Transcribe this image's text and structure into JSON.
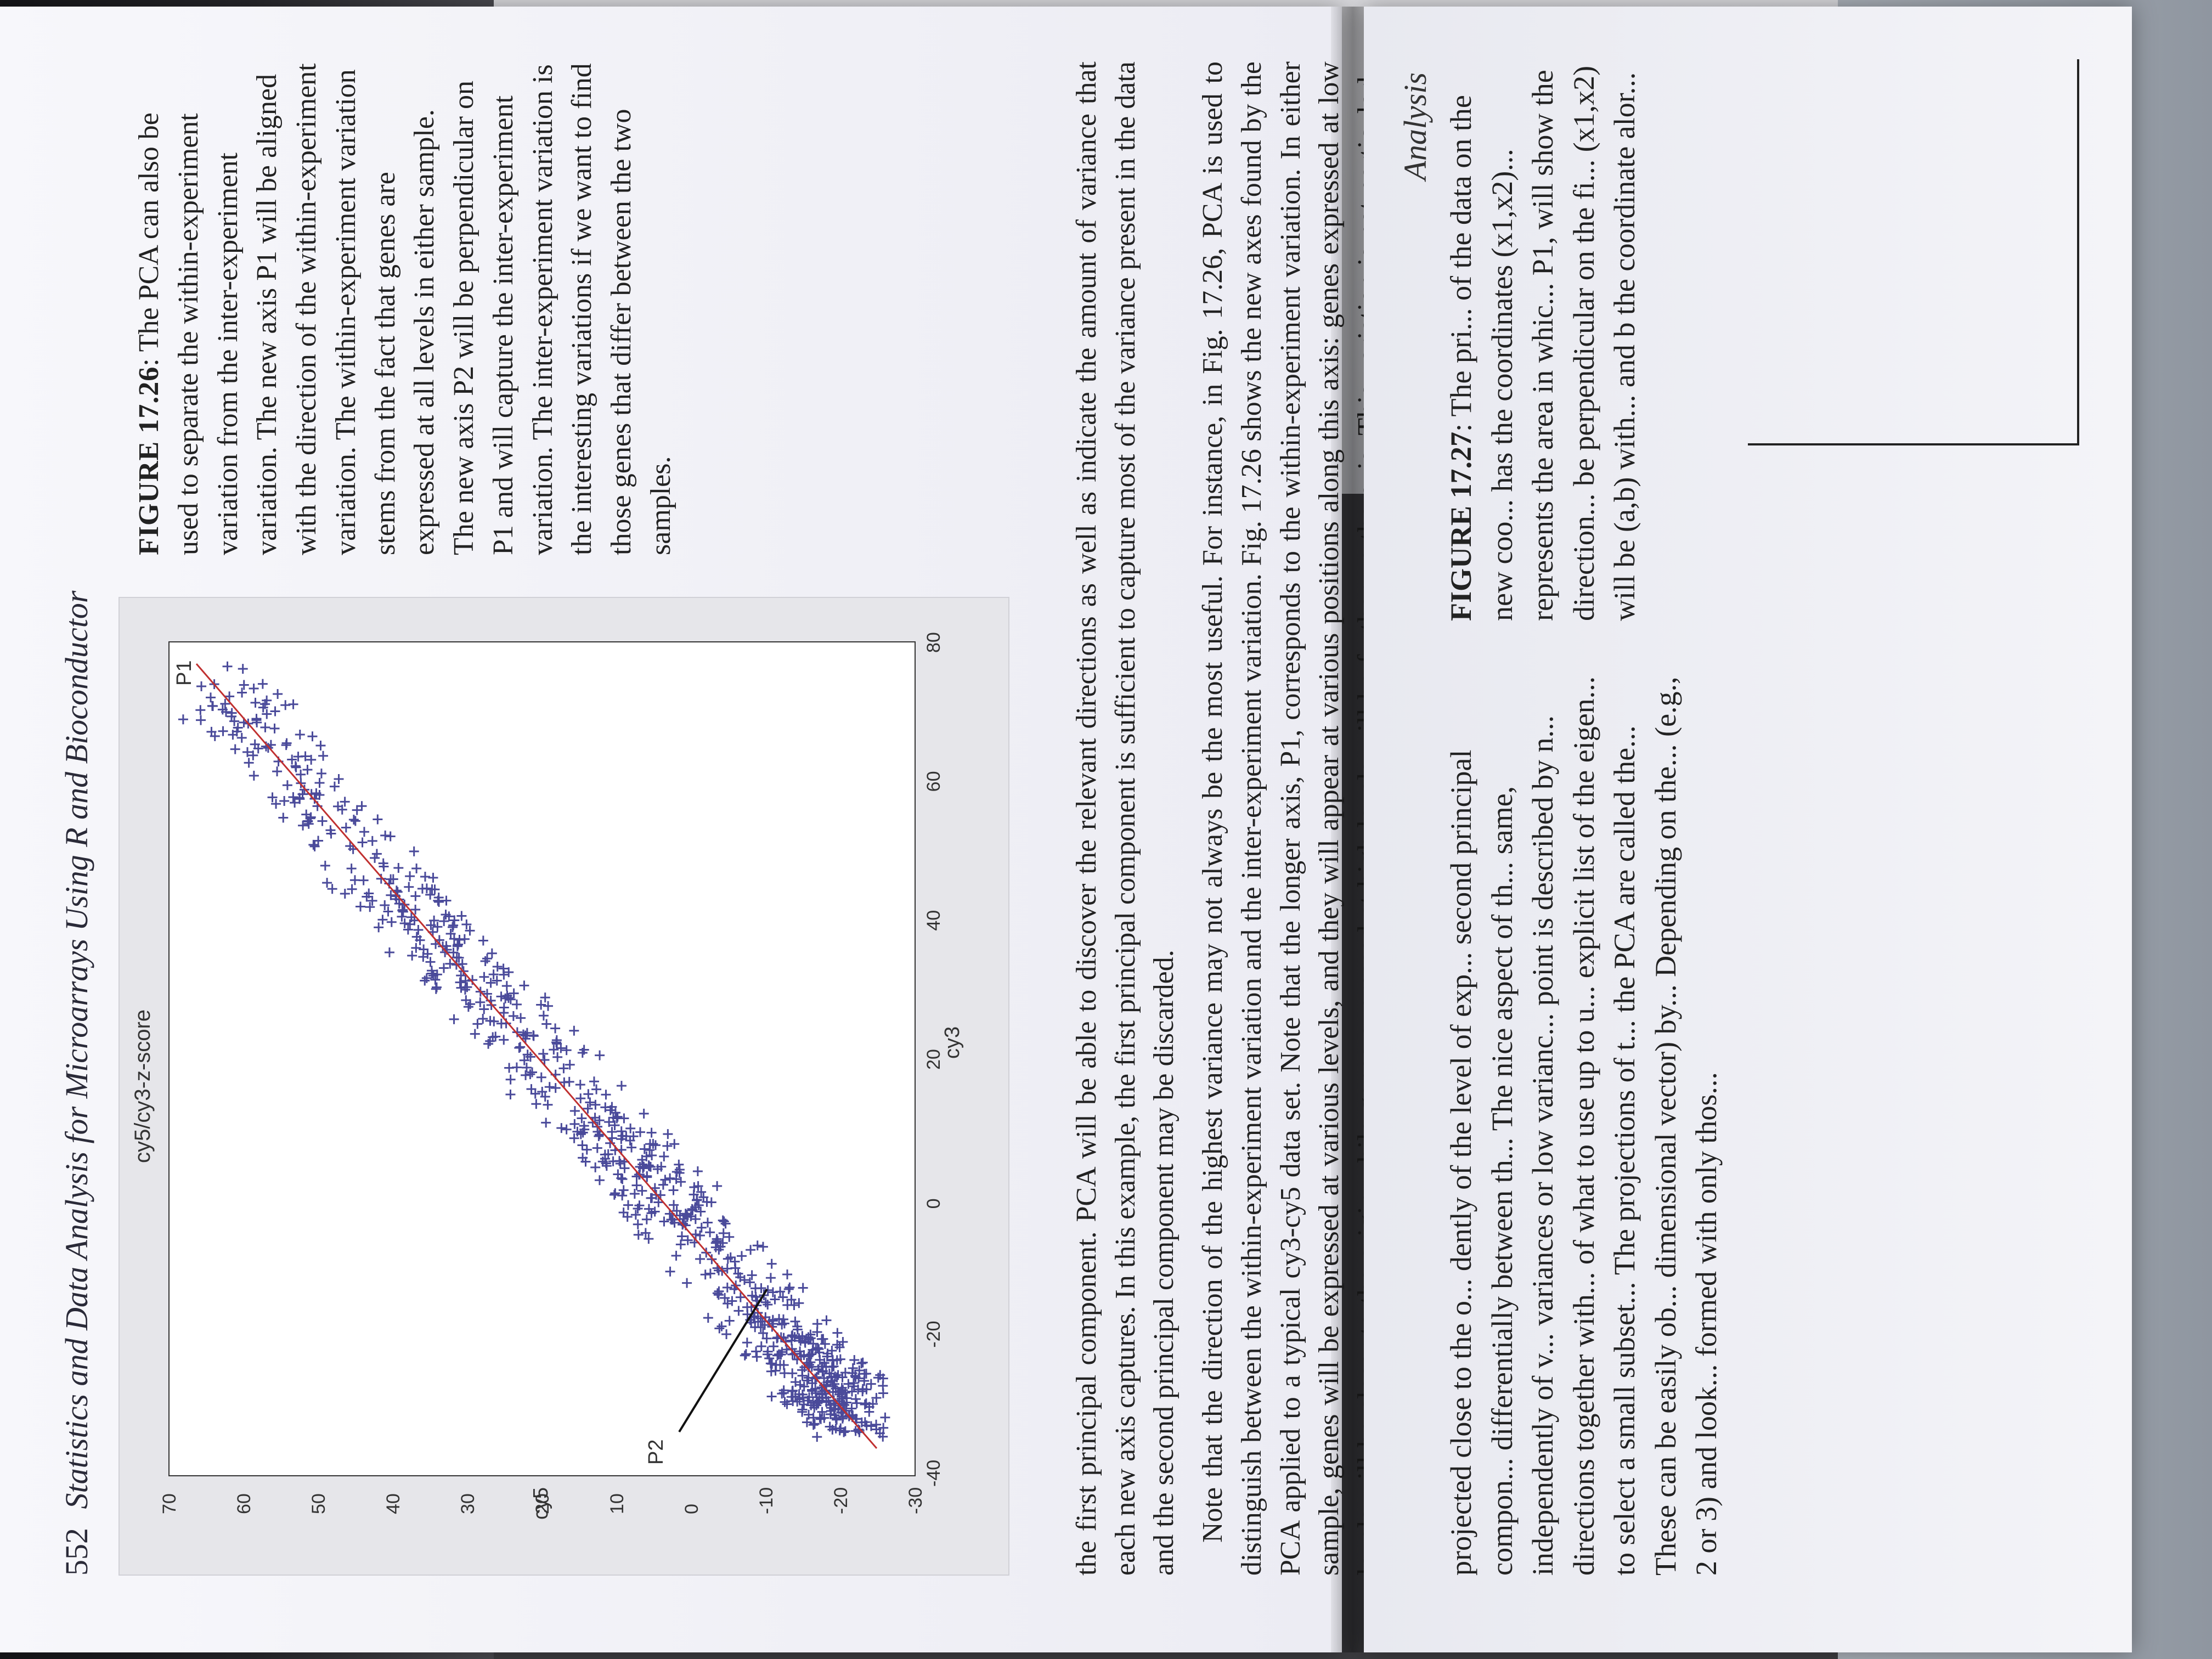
{
  "running_head": {
    "page_number": "552",
    "title": "Statistics and Data Analysis for Microarrays Using R and Bioconductor"
  },
  "figure": {
    "plot_title": "cy5/cy3-z-score",
    "xlabel": "cy3",
    "ylabel": "cy5",
    "p1_label": "P1",
    "p2_label": "P2",
    "xticks": [
      "-40",
      "-20",
      "0",
      "20",
      "40",
      "60",
      "80"
    ],
    "yticks": [
      "70",
      "60",
      "50",
      "40",
      "30",
      "20",
      "10",
      "0",
      "-10",
      "-20",
      "-30"
    ],
    "point_color": "#4a4a9a"
  },
  "caption": {
    "label": "FIGURE 17.26",
    "text": ": The PCA can also be used to separate the within-experiment variation from the inter-experiment variation. The new axis P1 will be aligned with the direction of the within-experiment variation. The within-experiment variation stems from the fact that genes are expressed at all levels in either sample. The new axis P2 will be perpendicular on P1 and will capture the inter-experiment variation. The inter-experiment variation is the interesting variations if we want to find those genes that differ between the two samples."
  },
  "body": {
    "p1": "the first principal component. PCA will be able to discover the relevant directions as well as indicate the amount of variance that each new axis captures. In this example, the first principal component is sufficient to capture most of the variance present in the data and the second principal component may be discarded.",
    "p2": "Note that the direction of the highest variance may not always be the most useful. For instance, in Fig. 17.26, PCA is used to distinguish between the within-experiment variation and the inter-experiment variation. Fig. 17.26 shows the new axes found by the PCA applied to a typical cy3-cy5 data set. Note that the longer axis, P1, corresponds to the within-experiment variation. In either sample, genes will be expressed at various levels, and they will appear at various positions along this axis: genes expressed at low levels will be closer to the origin while genes expressed at high levels will be further up the axis. This variation is not particularly interesting since we know a priori that genes will be expressed at all levels. However, the other axis, P2, will be aligned with the direction of the inter-experiment variation. The genes that are differentially regulated will appear far from the origin of this axis while genes that are expressed at the same level in both mRNA samples will be"
  },
  "next_page": {
    "head": "Analysis",
    "caption_label": "FIGURE 17.27",
    "caption_text": ": The pri... of the data on the new coo... has the coordinates (x1,x2)... represents the area in whic... P1, will show the direction... be perpendicular on the fi... (x1,x2) will be (a,b) with... and b the coordinate alor...",
    "body": "projected close to the o... dently of the level of exp... second principal compon... differentially between th... The nice aspect of th... same, independently of v... variances or low varianc... point is described by n... directions together with... of what to use up to u... explicit list of the eigen... to select a small subset... The projections of t... the PCA are called the... These can be easily ob... dimensional vector) by... Depending on the... (e.g., 2 or 3) and look... formed with only thos..."
  }
}
